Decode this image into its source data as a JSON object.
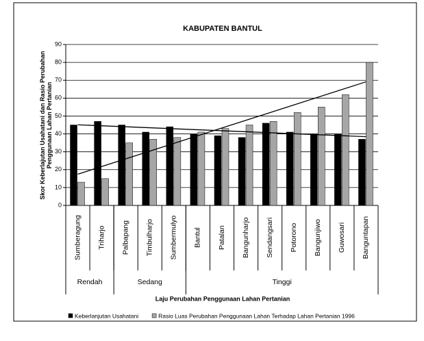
{
  "chart_data": {
    "type": "bar",
    "title": "KABUPATEN BANTUL",
    "y_label": "Skor Keberlajutan Usahatani dan Rasio Perubahan Penggunaan Lahan Pertanian",
    "x_label": "Laju Perubahan Penggunaan Lahan Pertanian",
    "groups": [
      {
        "label": "Rendah",
        "categories": [
          "Sumberagung",
          "Triharjo"
        ]
      },
      {
        "label": "Sedang",
        "categories": [
          "Palbapang",
          "Timbulharjo",
          "Sumbermulyo"
        ]
      },
      {
        "label": "Tinggi",
        "categories": [
          "Bantul",
          "Patalan",
          "Bangunharjo",
          "Sendangsari",
          "Potorono",
          "Bangunjiwo",
          "Guwosari",
          "Banguntapan"
        ]
      }
    ],
    "series": [
      {
        "name": "Keberlanjutan Usahatani",
        "color": "#000000",
        "values": [
          45,
          47,
          45,
          41,
          44,
          40,
          39,
          38,
          46,
          41,
          40,
          40,
          37
        ]
      },
      {
        "name": "Rasio Luas Perubahan Penggunaan Lahan Terhadap Lahan Pertanian 1996",
        "color": "#a6a6a6",
        "values": [
          13,
          15,
          35,
          37,
          38,
          41,
          43,
          45,
          47,
          52,
          55,
          62,
          80
        ]
      }
    ],
    "trendline": true,
    "ylim": [
      0,
      90
    ],
    "yticks": [
      0,
      10,
      20,
      30,
      40,
      50,
      60,
      70,
      80,
      90
    ],
    "grid": true,
    "legend": "bottom"
  }
}
